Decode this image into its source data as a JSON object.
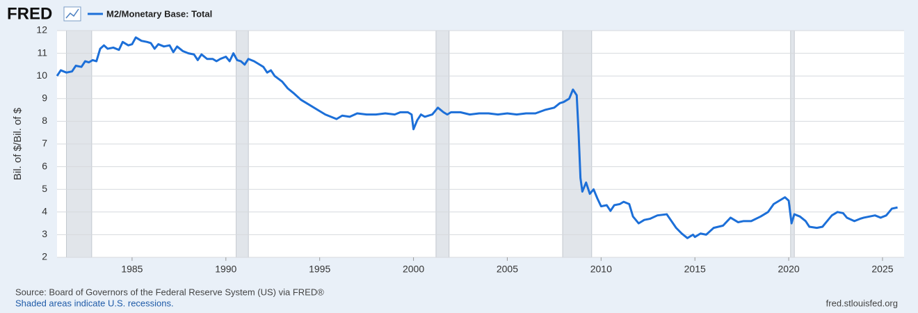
{
  "logo": "FRED",
  "chart_data": {
    "type": "line",
    "y_label": "Bil. of $/Bil. of $",
    "x": [
      1981.0,
      1981.2,
      1981.5,
      1981.8,
      1982.0,
      1982.3,
      1982.5,
      1982.7,
      1982.9,
      1983.1,
      1983.3,
      1983.5,
      1983.7,
      1984.0,
      1984.3,
      1984.5,
      1984.8,
      1985.0,
      1985.2,
      1985.5,
      1985.8,
      1986.0,
      1986.2,
      1986.4,
      1986.7,
      1987.0,
      1987.2,
      1987.4,
      1987.7,
      1988.0,
      1988.3,
      1988.5,
      1988.7,
      1989.0,
      1989.3,
      1989.5,
      1989.7,
      1990.0,
      1990.2,
      1990.4,
      1990.6,
      1990.8,
      1991.0,
      1991.2,
      1991.5,
      1991.8,
      1992.0,
      1992.2,
      1992.4,
      1992.6,
      1993.0,
      1993.3,
      1993.6,
      1994.0,
      1994.5,
      1995.0,
      1995.3,
      1995.6,
      1995.9,
      1996.2,
      1996.6,
      1997.0,
      1997.5,
      1998.0,
      1998.5,
      1999.0,
      1999.3,
      1999.7,
      1999.9,
      2000.0,
      2000.2,
      2000.4,
      2000.6,
      2001.0,
      2001.3,
      2001.6,
      2001.8,
      2002.0,
      2002.5,
      2003.0,
      2003.5,
      2004.0,
      2004.5,
      2005.0,
      2005.5,
      2006.0,
      2006.5,
      2007.0,
      2007.5,
      2007.8,
      2008.0,
      2008.3,
      2008.5,
      2008.7,
      2008.8,
      2008.9,
      2009.0,
      2009.2,
      2009.4,
      2009.6,
      2009.8,
      2010.0,
      2010.3,
      2010.5,
      2010.7,
      2011.0,
      2011.2,
      2011.5,
      2011.7,
      2012.0,
      2012.3,
      2012.6,
      2013.0,
      2013.5,
      2014.0,
      2014.3,
      2014.6,
      2014.9,
      2015.0,
      2015.3,
      2015.6,
      2016.0,
      2016.5,
      2016.9,
      2017.3,
      2017.6,
      2018.0,
      2018.5,
      2018.9,
      2019.2,
      2019.5,
      2019.8,
      2020.0,
      2020.15,
      2020.3,
      2020.6,
      2020.9,
      2021.1,
      2021.5,
      2021.8,
      2022.0,
      2022.3,
      2022.6,
      2022.9,
      2023.1,
      2023.5,
      2023.8,
      2024.0,
      2024.3,
      2024.6,
      2024.9,
      2025.2,
      2025.5,
      2025.8
    ],
    "series": [
      {
        "name": "M2/Monetary Base: Total",
        "color": "#1c6fd8",
        "values": [
          10.0,
          10.25,
          10.15,
          10.2,
          10.45,
          10.4,
          10.65,
          10.6,
          10.7,
          10.65,
          11.2,
          11.35,
          11.2,
          11.25,
          11.15,
          11.5,
          11.35,
          11.4,
          11.7,
          11.55,
          11.5,
          11.45,
          11.2,
          11.4,
          11.3,
          11.35,
          11.05,
          11.3,
          11.1,
          11.0,
          10.95,
          10.7,
          10.95,
          10.75,
          10.75,
          10.65,
          10.75,
          10.85,
          10.65,
          11.0,
          10.7,
          10.65,
          10.5,
          10.75,
          10.65,
          10.5,
          10.4,
          10.15,
          10.25,
          10.0,
          9.75,
          9.45,
          9.25,
          8.95,
          8.7,
          8.45,
          8.3,
          8.2,
          8.1,
          8.25,
          8.2,
          8.35,
          8.3,
          8.3,
          8.35,
          8.3,
          8.4,
          8.4,
          8.3,
          7.65,
          8.05,
          8.3,
          8.2,
          8.3,
          8.6,
          8.4,
          8.3,
          8.4,
          8.4,
          8.3,
          8.35,
          8.35,
          8.3,
          8.35,
          8.3,
          8.35,
          8.35,
          8.5,
          8.6,
          8.8,
          8.85,
          9.0,
          9.4,
          9.15,
          7.5,
          5.5,
          4.9,
          5.3,
          4.8,
          5.0,
          4.6,
          4.25,
          4.3,
          4.05,
          4.3,
          4.35,
          4.45,
          4.35,
          3.8,
          3.5,
          3.65,
          3.7,
          3.85,
          3.9,
          3.3,
          3.05,
          2.85,
          3.0,
          2.9,
          3.05,
          3.0,
          3.3,
          3.4,
          3.75,
          3.55,
          3.6,
          3.6,
          3.8,
          4.0,
          4.35,
          4.5,
          4.65,
          4.5,
          3.5,
          3.9,
          3.8,
          3.6,
          3.35,
          3.3,
          3.35,
          3.55,
          3.85,
          4.0,
          3.95,
          3.75,
          3.6,
          3.7,
          3.75,
          3.8,
          3.85,
          3.75,
          3.85,
          4.15,
          4.2
        ]
      }
    ],
    "recessions": [
      [
        1981.5,
        1982.85
      ],
      [
        1990.55,
        1991.2
      ],
      [
        2001.2,
        2001.9
      ],
      [
        2007.95,
        2009.5
      ],
      [
        2020.1,
        2020.3
      ]
    ],
    "xlim": [
      1981.0,
      2026.15
    ],
    "xticks": [
      1985,
      1990,
      1995,
      2000,
      2005,
      2010,
      2015,
      2020,
      2025
    ],
    "ylim": [
      2,
      12
    ],
    "yticks": [
      2,
      3,
      4,
      5,
      6,
      7,
      8,
      9,
      10,
      11,
      12
    ],
    "grid": true,
    "source": "Source: Board of Governors of the Federal Reserve System (US) via FRED®",
    "note": "Shaded areas indicate U.S. recessions.",
    "site": "fred.stlouisfed.org"
  }
}
